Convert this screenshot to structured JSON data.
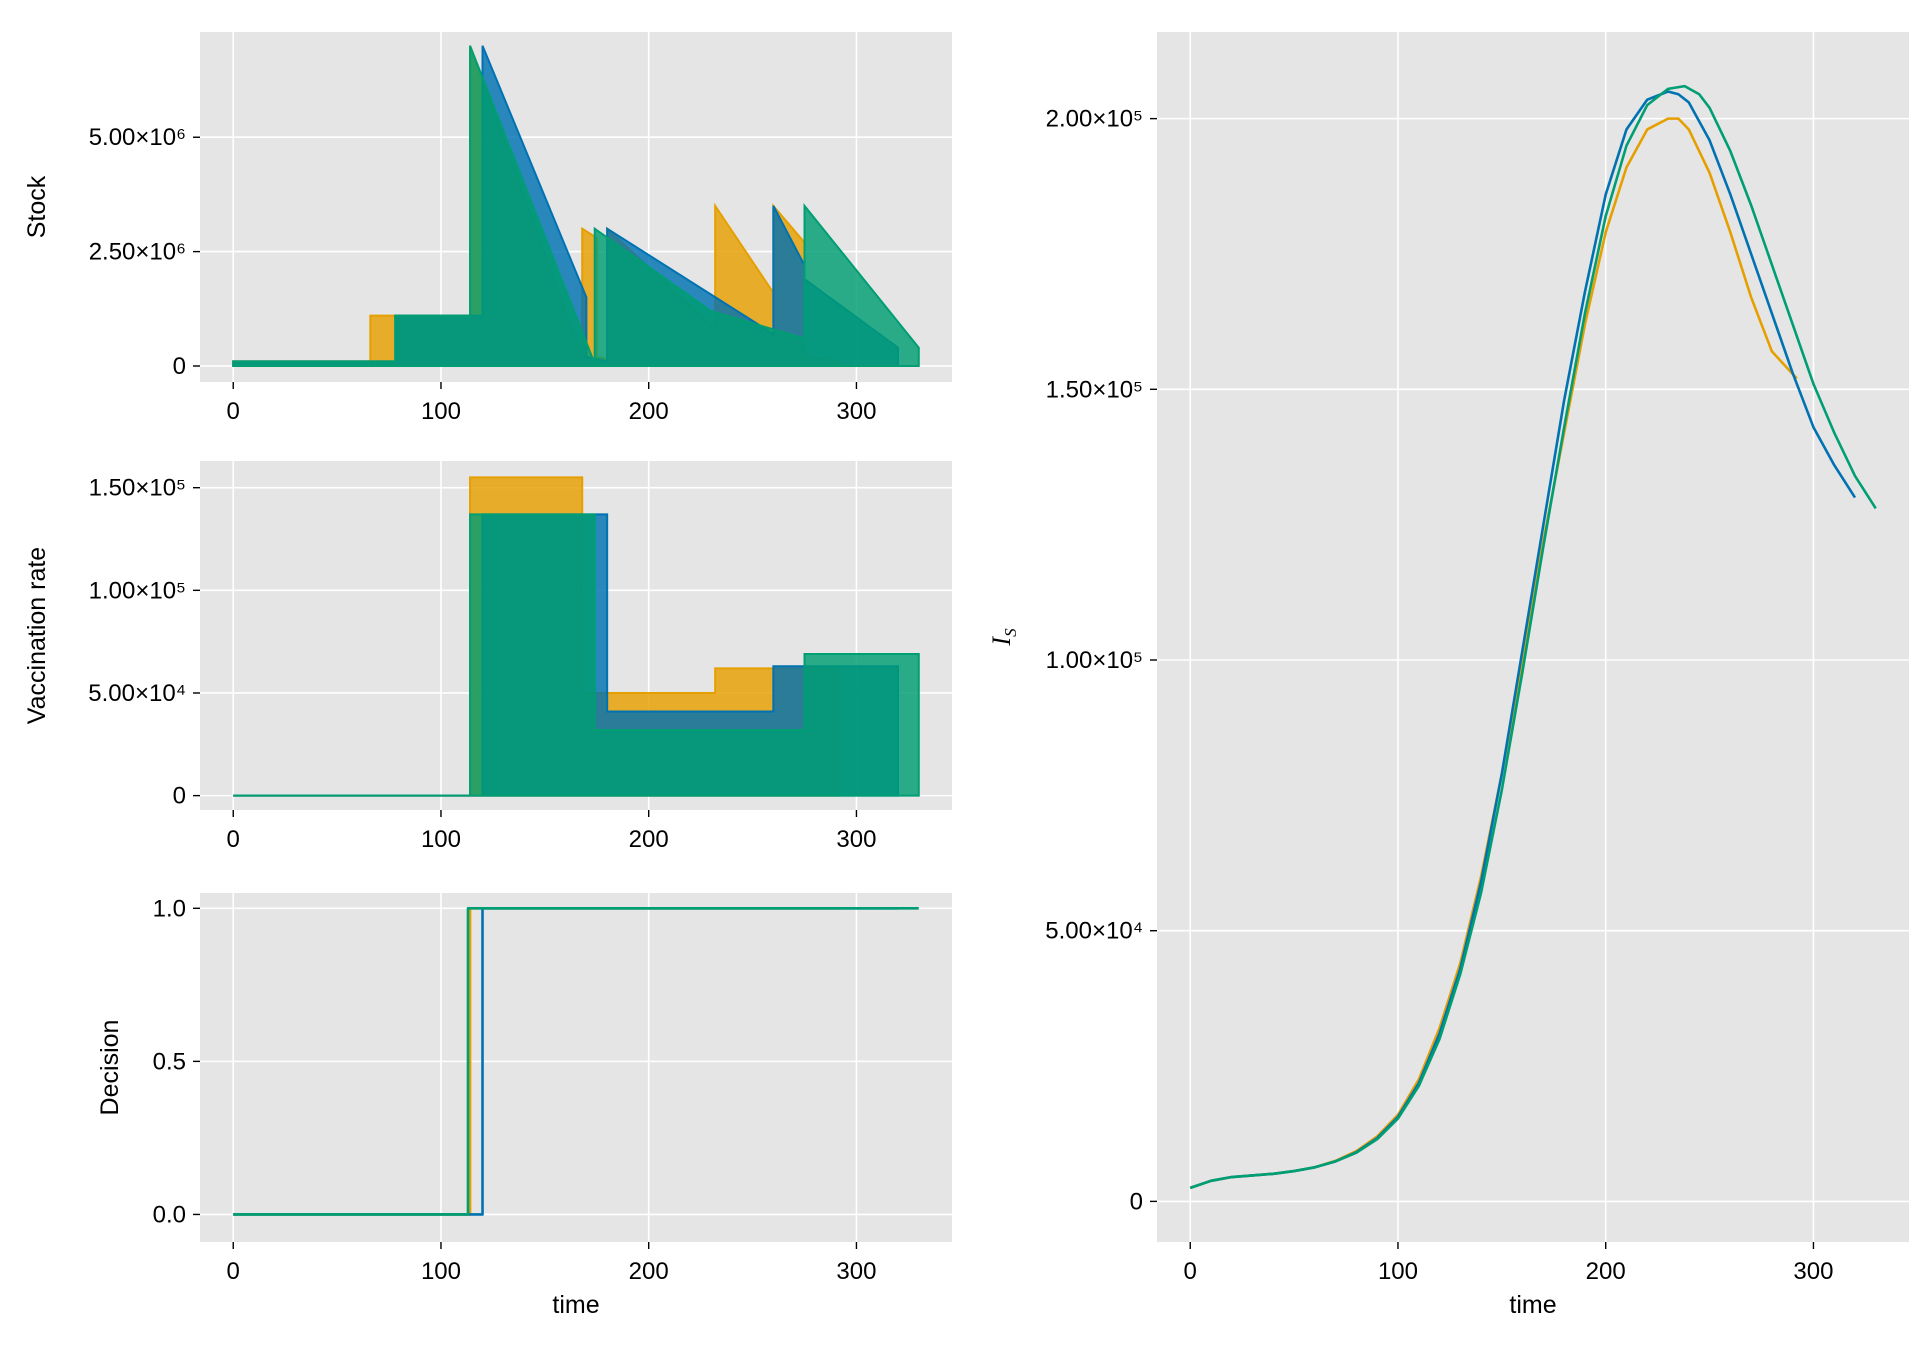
{
  "chart_data": [
    {
      "id": "stock",
      "type": "area",
      "ylabel": "Stock",
      "xlabel": "",
      "xlim": [
        -16,
        346
      ],
      "ylim": [
        -350000,
        7300000
      ],
      "xticks": [
        {
          "v": 0,
          "label": "0"
        },
        {
          "v": 100,
          "label": "100"
        },
        {
          "v": 200,
          "label": "200"
        },
        {
          "v": 300,
          "label": "300"
        }
      ],
      "yticks": [
        {
          "v": 0,
          "label": "0"
        },
        {
          "v": 2500000,
          "label": "2.50×10⁶"
        },
        {
          "v": 5000000,
          "label": "5.00×10⁶"
        }
      ],
      "grid": true,
      "series": [
        {
          "name": "orange",
          "color": "#E69F00",
          "x": [
            0,
            66,
            66,
            78,
            78,
            114,
            114,
            168,
            168,
            175,
            175,
            180,
            180,
            232,
            232,
            260,
            260,
            275,
            275,
            292
          ],
          "y": [
            100000,
            100000,
            1100000,
            1100000,
            1100000,
            1100000,
            7000000,
            200000,
            3000000,
            2800000,
            200000,
            150000,
            3000000,
            800000,
            3500000,
            1600000,
            3500000,
            2700000,
            200000,
            100000
          ]
        },
        {
          "name": "blue",
          "color": "#0072B2",
          "x": [
            0,
            78,
            78,
            120,
            120,
            170,
            170,
            180,
            180,
            260,
            260,
            275,
            275,
            320
          ],
          "y": [
            100000,
            100000,
            1100000,
            1100000,
            7000000,
            1500000,
            200000,
            100000,
            3000000,
            700000,
            3500000,
            2200000,
            1900000,
            400000
          ]
        },
        {
          "name": "green",
          "color": "#009E73",
          "x": [
            0,
            78,
            78,
            114,
            114,
            174,
            174,
            230,
            230,
            275,
            275,
            330
          ],
          "y": [
            100000,
            100000,
            1100000,
            1100000,
            7000000,
            50000,
            3000000,
            1200000,
            1200000,
            600000,
            3500000,
            400000
          ]
        }
      ]
    },
    {
      "id": "vaccination",
      "type": "area",
      "ylabel": "Vaccination rate",
      "xlabel": "",
      "xlim": [
        -16,
        346
      ],
      "ylim": [
        -7000,
        163000
      ],
      "xticks": [
        {
          "v": 0,
          "label": "0"
        },
        {
          "v": 100,
          "label": "100"
        },
        {
          "v": 200,
          "label": "200"
        },
        {
          "v": 300,
          "label": "300"
        }
      ],
      "yticks": [
        {
          "v": 0,
          "label": "0"
        },
        {
          "v": 50000,
          "label": "5.00×10⁴"
        },
        {
          "v": 100000,
          "label": "1.00×10⁵"
        },
        {
          "v": 150000,
          "label": "1.50×10⁵"
        }
      ],
      "grid": true,
      "series": [
        {
          "name": "orange",
          "color": "#E69F00",
          "x": [
            0,
            114,
            114,
            168,
            168,
            175,
            175,
            232,
            232,
            260,
            260,
            292
          ],
          "y": [
            0,
            0,
            155000,
            155000,
            50000,
            50000,
            50000,
            50000,
            62000,
            62000,
            62000,
            62000
          ]
        },
        {
          "name": "blue",
          "color": "#0072B2",
          "x": [
            0,
            120,
            120,
            180,
            180,
            260,
            260,
            320
          ],
          "y": [
            0,
            0,
            137000,
            137000,
            41000,
            41000,
            63000,
            63000
          ]
        },
        {
          "name": "green",
          "color": "#009E73",
          "x": [
            0,
            114,
            114,
            174,
            174,
            275,
            275,
            330
          ],
          "y": [
            0,
            0,
            137000,
            137000,
            32000,
            32000,
            69000,
            69000
          ]
        }
      ]
    },
    {
      "id": "decision",
      "type": "line",
      "ylabel": "Decision",
      "xlabel": "time",
      "xlim": [
        -16,
        346
      ],
      "ylim": [
        -0.09,
        1.05
      ],
      "xticks": [
        {
          "v": 0,
          "label": "0"
        },
        {
          "v": 100,
          "label": "100"
        },
        {
          "v": 200,
          "label": "200"
        },
        {
          "v": 300,
          "label": "300"
        }
      ],
      "yticks": [
        {
          "v": 0,
          "label": "0.0"
        },
        {
          "v": 0.5,
          "label": "0.5"
        },
        {
          "v": 1,
          "label": "1.0"
        }
      ],
      "grid": true,
      "series": [
        {
          "name": "orange",
          "color": "#E69F00",
          "x": [
            0,
            114,
            114,
            292
          ],
          "y": [
            0,
            0,
            1,
            1
          ]
        },
        {
          "name": "blue",
          "color": "#0072B2",
          "x": [
            0,
            120,
            120,
            320
          ],
          "y": [
            0,
            0,
            1,
            1
          ]
        },
        {
          "name": "green",
          "color": "#009E73",
          "x": [
            0,
            113,
            113,
            330
          ],
          "y": [
            0,
            0,
            1,
            1
          ]
        }
      ]
    },
    {
      "id": "infected",
      "type": "line",
      "ylabel": "I",
      "ylabel_sub": "S",
      "xlabel": "time",
      "xlim": [
        -16,
        346
      ],
      "ylim": [
        -7500,
        216000
      ],
      "xticks": [
        {
          "v": 0,
          "label": "0"
        },
        {
          "v": 100,
          "label": "100"
        },
        {
          "v": 200,
          "label": "200"
        },
        {
          "v": 300,
          "label": "300"
        }
      ],
      "yticks": [
        {
          "v": 0,
          "label": "0"
        },
        {
          "v": 50000,
          "label": "5.00×10⁴"
        },
        {
          "v": 100000,
          "label": "1.00×10⁵"
        },
        {
          "v": 150000,
          "label": "1.50×10⁵"
        },
        {
          "v": 200000,
          "label": "2.00×10⁵"
        }
      ],
      "grid": true,
      "series": [
        {
          "name": "orange",
          "color": "#E69F00",
          "x": [
            0,
            10,
            20,
            30,
            40,
            50,
            60,
            70,
            80,
            90,
            100,
            110,
            120,
            130,
            140,
            150,
            160,
            170,
            180,
            190,
            200,
            210,
            220,
            230,
            235,
            240,
            250,
            260,
            270,
            280,
            292
          ],
          "y": [
            2500,
            3800,
            4500,
            4800,
            5100,
            5600,
            6300,
            7500,
            9300,
            12000,
            16000,
            22500,
            32000,
            44000,
            60000,
            79000,
            100000,
            122000,
            142000,
            162000,
            179000,
            191000,
            198000,
            200000,
            200000,
            198000,
            190000,
            179000,
            167000,
            157000,
            152000
          ]
        },
        {
          "name": "blue",
          "color": "#0072B2",
          "x": [
            0,
            10,
            20,
            30,
            40,
            50,
            60,
            70,
            80,
            90,
            100,
            110,
            120,
            130,
            140,
            150,
            160,
            170,
            180,
            190,
            200,
            210,
            220,
            230,
            235,
            240,
            250,
            260,
            270,
            280,
            290,
            300,
            310,
            320
          ],
          "y": [
            2500,
            3800,
            4500,
            4800,
            5100,
            5600,
            6300,
            7400,
            9100,
            11700,
            15600,
            21800,
            31000,
            43000,
            59000,
            79000,
            102000,
            125000,
            148000,
            168000,
            186000,
            198000,
            203500,
            205000,
            204500,
            203000,
            196000,
            186000,
            175000,
            164000,
            153000,
            143000,
            136000,
            130000
          ]
        },
        {
          "name": "green",
          "color": "#009E73",
          "x": [
            0,
            10,
            20,
            30,
            40,
            50,
            60,
            70,
            80,
            90,
            100,
            110,
            120,
            130,
            140,
            150,
            160,
            170,
            180,
            190,
            200,
            210,
            220,
            230,
            238,
            245,
            250,
            260,
            270,
            280,
            290,
            300,
            310,
            320,
            330
          ],
          "y": [
            2500,
            3800,
            4500,
            4800,
            5100,
            5600,
            6300,
            7400,
            9000,
            11500,
            15300,
            21300,
            30000,
            42000,
            57000,
            76000,
            98000,
            121000,
            143000,
            164000,
            182000,
            195000,
            202500,
            205500,
            206000,
            204500,
            202000,
            194000,
            184000,
            173000,
            162000,
            151000,
            142000,
            134000,
            128000
          ]
        }
      ]
    }
  ]
}
